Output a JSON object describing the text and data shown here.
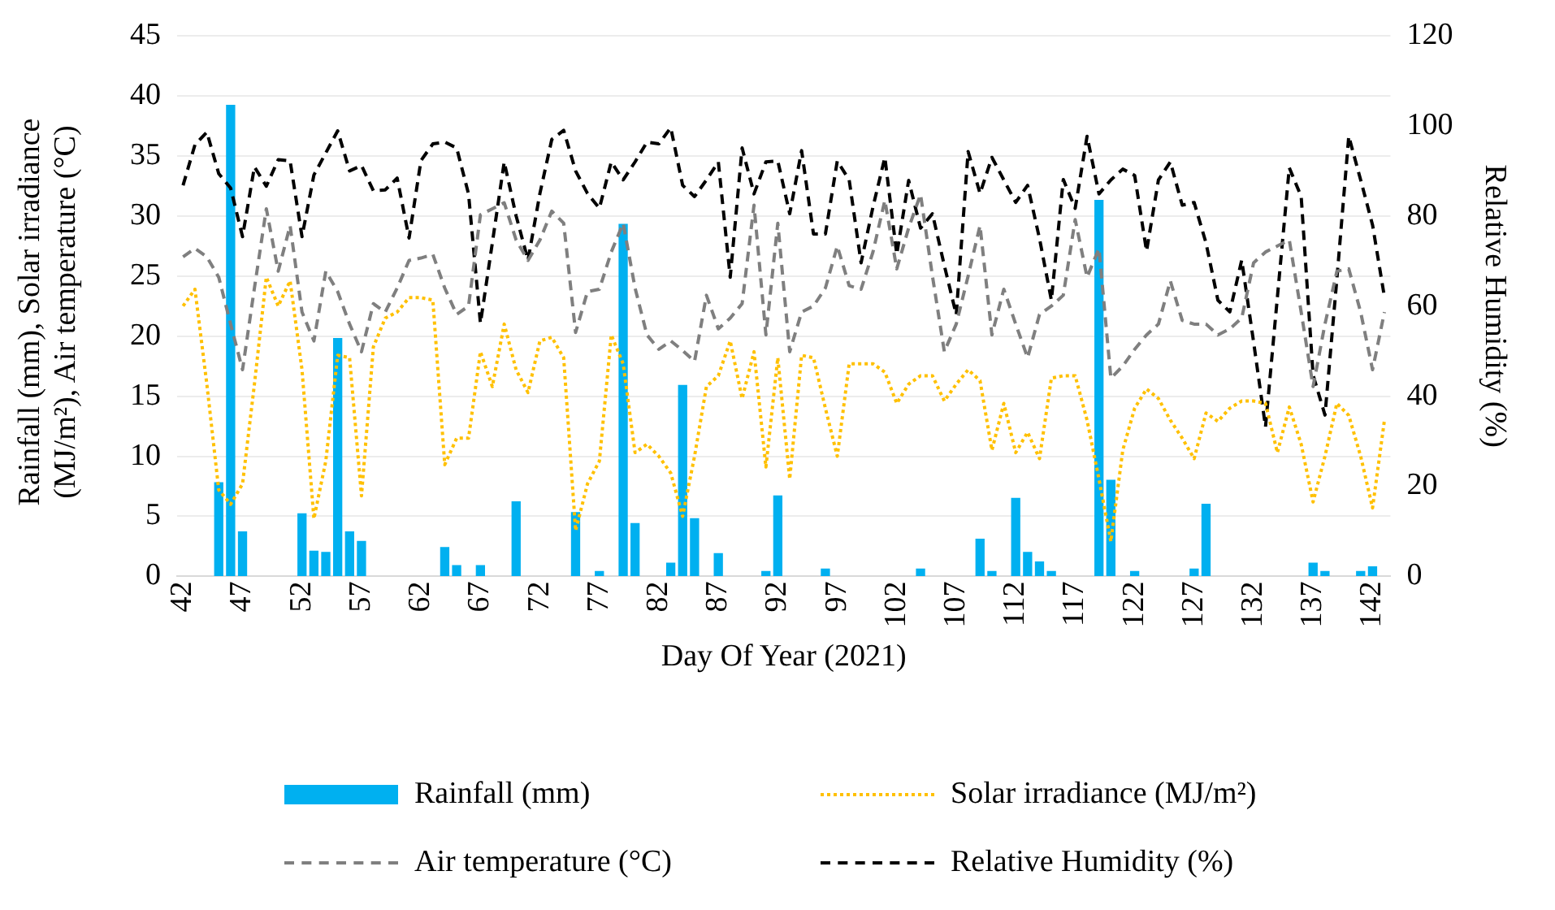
{
  "chart_data": {
    "type": "bar",
    "xlabel": "Day Of Year (2021)",
    "ylabel": "Rainfall (mm),  Solar irradiance (MJ/m²), Air temperature (°C)",
    "y2label": "Relative Humidity (%)",
    "xlim": [
      41.5,
      143.5
    ],
    "xticks": [
      42,
      47,
      52,
      57,
      62,
      67,
      72,
      77,
      82,
      87,
      92,
      97,
      102,
      107,
      112,
      117,
      122,
      127,
      132,
      137,
      142
    ],
    "ylim": [
      0,
      45
    ],
    "yticks": [
      0,
      5,
      10,
      15,
      20,
      25,
      30,
      35,
      40,
      45
    ],
    "y2lim": [
      0,
      120
    ],
    "y2ticks": [
      0,
      20,
      40,
      60,
      80,
      100,
      120
    ],
    "grid": "y",
    "legend": "bottom",
    "series": [
      {
        "name": "Rainfall (mm)",
        "color": "#00b0f0",
        "x": [
          45,
          46,
          47,
          52,
          53,
          54,
          55,
          56,
          57,
          64,
          65,
          67,
          70,
          75,
          77,
          79,
          80,
          83,
          84,
          85,
          87,
          91,
          92,
          96,
          104,
          109,
          110,
          112,
          113,
          114,
          115,
          119,
          120,
          122,
          127,
          128,
          137,
          138,
          141,
          142
        ],
        "values": [
          7.8,
          39.2,
          3.7,
          5.2,
          2.1,
          2.0,
          19.8,
          3.7,
          2.9,
          2.4,
          0.9,
          0.9,
          6.2,
          5.3,
          0.4,
          29.3,
          4.4,
          1.1,
          15.9,
          4.8,
          1.9,
          0.4,
          6.7,
          0.6,
          0.6,
          3.1,
          0.4,
          6.5,
          2.0,
          1.2,
          0.4,
          31.3,
          8.0,
          0.4,
          0.6,
          6.0,
          1.1,
          0.4,
          0.4,
          0.8
        ]
      },
      {
        "name": "Solar irradiance (MJ/m²)",
        "type": "line",
        "line_style": "dotted",
        "color": "#ffc000",
        "x": [
          42,
          43,
          44,
          45,
          46,
          47,
          48,
          49,
          50,
          51,
          52,
          53,
          54,
          55,
          56,
          57,
          58,
          59,
          60,
          61,
          62,
          63,
          64,
          65,
          66,
          67,
          68,
          69,
          70,
          71,
          72,
          73,
          74,
          75,
          76,
          77,
          78,
          79,
          80,
          81,
          82,
          83,
          84,
          85,
          86,
          87,
          88,
          89,
          90,
          91,
          92,
          93,
          94,
          95,
          96,
          97,
          98,
          99,
          100,
          101,
          102,
          103,
          104,
          105,
          106,
          107,
          108,
          109,
          110,
          111,
          112,
          113,
          114,
          115,
          116,
          117,
          118,
          119,
          120,
          121,
          122,
          123,
          124,
          125,
          126,
          127,
          128,
          129,
          130,
          131,
          132,
          133,
          134,
          135,
          136,
          137,
          138,
          139,
          140,
          141,
          142,
          143
        ],
        "values": [
          22.5,
          23.9,
          16,
          7.2,
          6,
          7.7,
          16,
          24.9,
          22.5,
          24.6,
          17.2,
          4.8,
          9.6,
          18.4,
          18.2,
          6.7,
          19.1,
          21.5,
          22,
          23.2,
          23.2,
          23,
          9.3,
          11.5,
          11.5,
          18.7,
          15.8,
          21,
          17.2,
          15.3,
          19.6,
          19.9,
          18.2,
          3.8,
          7.7,
          9.6,
          20.1,
          17.7,
          10.3,
          11,
          10,
          8.6,
          5,
          10,
          15.8,
          16.7,
          19.6,
          14.8,
          18.7,
          9.1,
          18.2,
          8.1,
          18.4,
          18.2,
          14,
          10,
          17.7,
          17.7,
          17.7,
          17,
          14.4,
          16,
          16.7,
          16.7,
          14.6,
          16,
          17.2,
          16.3,
          10.5,
          14.4,
          10.3,
          12,
          9.8,
          16.5,
          16.7,
          16.7,
          13,
          8.1,
          2.9,
          10.5,
          14,
          15.6,
          14.8,
          13,
          11.5,
          9.8,
          13.6,
          12.9,
          14,
          14.6,
          14.6,
          14.4,
          10.3,
          14.1,
          11,
          6.2,
          10,
          14.4,
          13.4,
          10,
          5.7,
          13
        ]
      },
      {
        "name": "Air temperature (°C)",
        "type": "line",
        "line_style": "dashed",
        "color": "#7f7f7f",
        "x": [
          42,
          43,
          44,
          45,
          46,
          47,
          48,
          49,
          50,
          51,
          52,
          53,
          54,
          55,
          56,
          57,
          58,
          59,
          60,
          61,
          62,
          63,
          64,
          65,
          66,
          67,
          68,
          69,
          70,
          71,
          72,
          73,
          74,
          75,
          76,
          77,
          78,
          79,
          80,
          81,
          82,
          83,
          84,
          85,
          86,
          87,
          88,
          89,
          90,
          91,
          92,
          93,
          94,
          95,
          96,
          97,
          98,
          99,
          100,
          101,
          102,
          103,
          104,
          105,
          106,
          107,
          108,
          109,
          110,
          111,
          112,
          113,
          114,
          115,
          116,
          117,
          118,
          119,
          120,
          121,
          122,
          123,
          124,
          125,
          126,
          127,
          128,
          129,
          130,
          131,
          132,
          133,
          134,
          135,
          136,
          137,
          138,
          139,
          140,
          141,
          142,
          143
        ],
        "values": [
          26.6,
          27.3,
          26.6,
          24.9,
          21,
          17.2,
          24,
          30.6,
          25.4,
          29.2,
          22,
          19.6,
          25.4,
          23.7,
          21,
          18.7,
          22.7,
          22,
          24,
          26.3,
          26.5,
          26.8,
          24,
          21.8,
          22.5,
          30.1,
          30.6,
          31.1,
          28,
          26.3,
          28,
          30.4,
          29.4,
          20.3,
          23.7,
          23.9,
          27,
          29.4,
          24,
          20.1,
          18.9,
          19.6,
          18.8,
          17.9,
          23.4,
          20.6,
          21.5,
          22.7,
          30.9,
          20.1,
          29.4,
          18.7,
          22,
          22.5,
          24,
          27.5,
          24.2,
          23.9,
          27,
          31.3,
          25.6,
          29,
          31.8,
          25,
          18.7,
          21,
          25,
          29.2,
          20.1,
          23.9,
          21,
          18.2,
          21.8,
          22.5,
          23.4,
          29.7,
          24.9,
          27.3,
          16.5,
          17.5,
          18.9,
          20.1,
          21,
          24.6,
          21.3,
          21,
          21,
          20.1,
          20.6,
          21.5,
          26.1,
          27,
          27.5,
          28,
          22,
          15.8,
          21,
          25.4,
          25.6,
          22,
          17.2,
          22
        ]
      },
      {
        "name": "Relative Humidity (%)",
        "type": "line",
        "axis": "y2",
        "line_style": "dashed",
        "color": "#000000",
        "x": [
          42,
          43,
          44,
          45,
          46,
          47,
          48,
          49,
          50,
          51,
          52,
          53,
          54,
          55,
          56,
          57,
          58,
          59,
          60,
          61,
          62,
          63,
          64,
          65,
          66,
          67,
          68,
          69,
          70,
          71,
          72,
          73,
          74,
          75,
          76,
          77,
          78,
          79,
          80,
          81,
          82,
          83,
          84,
          85,
          86,
          87,
          88,
          89,
          90,
          91,
          92,
          93,
          94,
          95,
          96,
          97,
          98,
          99,
          100,
          101,
          102,
          103,
          104,
          105,
          106,
          107,
          108,
          109,
          110,
          111,
          112,
          113,
          114,
          115,
          116,
          117,
          118,
          119,
          120,
          121,
          122,
          123,
          124,
          125,
          126,
          127,
          128,
          129,
          130,
          131,
          132,
          133,
          134,
          135,
          136,
          137,
          138,
          139,
          140,
          141,
          142,
          143
        ],
        "values": [
          86.8,
          95.8,
          98.6,
          89.4,
          86.2,
          75.4,
          90.9,
          86.6,
          92.5,
          92.2,
          75.4,
          89.1,
          94,
          98.9,
          90,
          91.2,
          85.6,
          85.8,
          88.4,
          75.1,
          92.3,
          96,
          96.4,
          95.1,
          84.9,
          56.2,
          74,
          92,
          80,
          70.2,
          85,
          97,
          99,
          90,
          85,
          81.7,
          92,
          88,
          92,
          96.4,
          96,
          99.6,
          86.8,
          84.3,
          88,
          92,
          66.4,
          95.1,
          84.9,
          92,
          92.2,
          80.5,
          94.5,
          76,
          76,
          92.2,
          88,
          69.6,
          82,
          93,
          71.5,
          87.9,
          77.3,
          80.5,
          69,
          58.1,
          94.3,
          85,
          93,
          88,
          83,
          86.8,
          75,
          61.3,
          88.1,
          81.7,
          97.7,
          84.9,
          88,
          90.4,
          89,
          72.2,
          88,
          92,
          82.4,
          83,
          74,
          61.3,
          58.7,
          70.2,
          52,
          33.2,
          62,
          90.7,
          84.3,
          44.7,
          35.8,
          66,
          97.7,
          88,
          78,
          62
        ]
      }
    ]
  }
}
